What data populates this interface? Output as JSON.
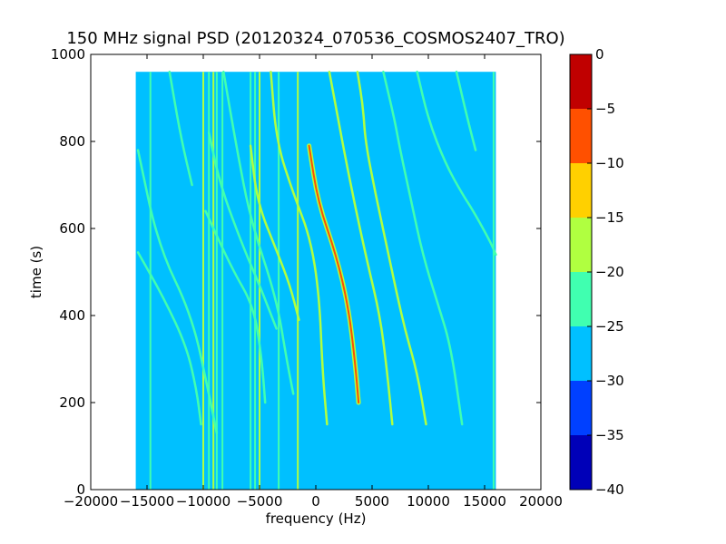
{
  "chart_data": {
    "type": "heatmap",
    "title": "150 MHz signal PSD (20120324_070536_COSMOS2407_TRO)",
    "xlabel": "frequency (Hz)",
    "ylabel": "time (s)",
    "xlim": [
      -20000,
      20000
    ],
    "ylim": [
      0,
      1000
    ],
    "x_ticks": [
      -20000,
      -15000,
      -10000,
      -5000,
      0,
      5000,
      10000,
      15000,
      20000
    ],
    "x_tick_labels": [
      "−20000",
      "−15000",
      "−10000",
      "−5000",
      "0",
      "5000",
      "10000",
      "15000",
      "20000"
    ],
    "y_ticks": [
      0,
      200,
      400,
      600,
      800,
      1000
    ],
    "y_tick_labels": [
      "0",
      "200",
      "400",
      "600",
      "800",
      "1000"
    ],
    "data_extent": {
      "x": [
        -16000,
        16000
      ],
      "y": [
        0,
        960
      ]
    },
    "background_level": -27.5,
    "colorbar": {
      "levels": [
        -40,
        -35,
        -30,
        -25,
        -20,
        -15,
        -10,
        -5,
        0
      ],
      "level_labels": [
        "−40",
        "−35",
        "−30",
        "−25",
        "−20",
        "−15",
        "−10",
        "−5",
        "0"
      ],
      "colors": [
        "#0000b8",
        "#0040ff",
        "#00c0ff",
        "#40ffb0",
        "#b0ff40",
        "#ffd000",
        "#ff5000",
        "#c00000"
      ]
    },
    "vertical_lines": [
      {
        "freq": -14700,
        "level": -22.5
      },
      {
        "freq": -10000,
        "level": -17.5
      },
      {
        "freq": -9500,
        "level": -22.5
      },
      {
        "freq": -9100,
        "level": -17.5
      },
      {
        "freq": -8800,
        "level": -22.5
      },
      {
        "freq": -8300,
        "level": -22.5
      },
      {
        "freq": -5800,
        "level": -22.5
      },
      {
        "freq": -5400,
        "level": -22.5
      },
      {
        "freq": -5000,
        "level": -17.5
      },
      {
        "freq": -3300,
        "level": -22.5
      },
      {
        "freq": -1600,
        "level": -17.5
      },
      {
        "freq": 15800,
        "level": -22.5
      }
    ],
    "tracks": [
      {
        "points": [
          [
            -15800,
            545
          ],
          [
            -13500,
            440
          ],
          [
            -11500,
            330
          ],
          [
            -10600,
            230
          ],
          [
            -10200,
            150
          ]
        ],
        "level": -22.5
      },
      {
        "points": [
          [
            -15800,
            780
          ],
          [
            -14000,
            560
          ],
          [
            -11000,
            400
          ],
          [
            -9500,
            220
          ],
          [
            -8800,
            130
          ]
        ],
        "level": -22.5
      },
      {
        "points": [
          [
            -13000,
            960
          ],
          [
            -12000,
            810
          ],
          [
            -11000,
            700
          ]
        ],
        "level": -22.5
      },
      {
        "points": [
          [
            -9800,
            640
          ],
          [
            -7500,
            510
          ],
          [
            -5500,
            420
          ],
          [
            -4800,
            300
          ],
          [
            -4500,
            200
          ]
        ],
        "level": -22.5
      },
      {
        "points": [
          [
            -8200,
            960
          ],
          [
            -7000,
            780
          ],
          [
            -5800,
            620
          ],
          [
            -3500,
            440
          ],
          [
            -2600,
            300
          ],
          [
            -2000,
            220
          ]
        ],
        "level": -22.5
      },
      {
        "points": [
          [
            -9500,
            820
          ],
          [
            -8500,
            700
          ],
          [
            -6500,
            560
          ],
          [
            -5000,
            470
          ],
          [
            -3500,
            370
          ]
        ],
        "level": -22.5
      },
      {
        "points": [
          [
            -5800,
            790
          ],
          [
            -5200,
            660
          ],
          [
            -3500,
            550
          ],
          [
            -2300,
            470
          ],
          [
            -1500,
            390
          ]
        ],
        "level": -17.5
      },
      {
        "points": [
          [
            -4000,
            960
          ],
          [
            -3500,
            800
          ],
          [
            -2000,
            680
          ],
          [
            -500,
            580
          ],
          [
            300,
            450
          ],
          [
            600,
            270
          ],
          [
            1000,
            150
          ]
        ],
        "level": -17.5
      },
      {
        "points": [
          [
            -600,
            790
          ],
          [
            200,
            660
          ],
          [
            1800,
            540
          ],
          [
            2900,
            420
          ],
          [
            3500,
            290
          ],
          [
            3800,
            200
          ]
        ],
        "level": -10
      },
      {
        "points": [
          [
            1200,
            960
          ],
          [
            2000,
            850
          ],
          [
            2500,
            780
          ],
          [
            3500,
            650
          ],
          [
            4600,
            520
          ],
          [
            5700,
            400
          ],
          [
            6300,
            280
          ],
          [
            6800,
            150
          ]
        ],
        "level": -17.5
      },
      {
        "points": [
          [
            3700,
            960
          ],
          [
            4200,
            880
          ],
          [
            4400,
            800
          ],
          [
            5300,
            680
          ],
          [
            6300,
            560
          ],
          [
            7200,
            450
          ],
          [
            8000,
            360
          ],
          [
            9000,
            270
          ],
          [
            9800,
            150
          ]
        ],
        "level": -17.5
      },
      {
        "points": [
          [
            6000,
            960
          ],
          [
            7000,
            850
          ],
          [
            7500,
            780
          ],
          [
            8500,
            660
          ],
          [
            9500,
            540
          ],
          [
            10800,
            430
          ],
          [
            12000,
            330
          ],
          [
            13000,
            150
          ]
        ],
        "level": -22.5
      },
      {
        "points": [
          [
            9000,
            960
          ],
          [
            10000,
            850
          ],
          [
            11500,
            750
          ],
          [
            13000,
            680
          ],
          [
            14000,
            640
          ],
          [
            15500,
            570
          ],
          [
            16000,
            540
          ]
        ],
        "level": -22.5
      },
      {
        "points": [
          [
            12500,
            960
          ],
          [
            13500,
            850
          ],
          [
            14200,
            780
          ]
        ],
        "level": -22.5
      }
    ]
  }
}
